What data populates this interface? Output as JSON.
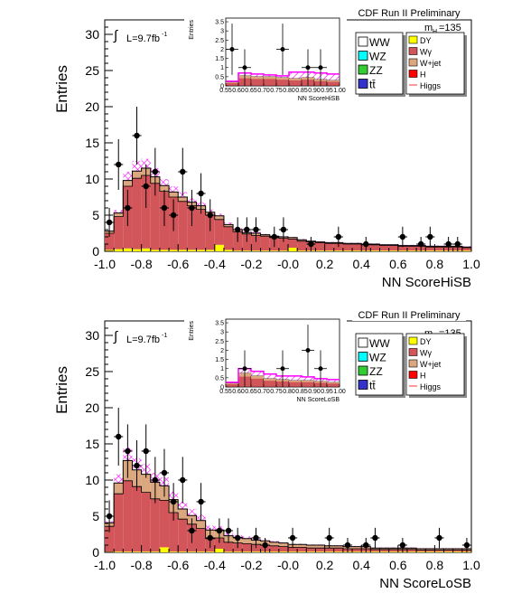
{
  "chart_data": [
    {
      "type": "bar",
      "id": "hisb",
      "xlabel": "NN ScoreHiSB",
      "ylabel": "Entries",
      "xlim": [
        -1.0,
        1.0
      ],
      "ylim": [
        0,
        32
      ],
      "xticks": [
        "-1.0",
        "-0.8",
        "-0.6",
        "-0.4",
        "-0.2",
        "-0.0",
        "0.2",
        "0.4",
        "0.6",
        "0.8",
        "1.0"
      ],
      "yticks": [
        "0",
        "5",
        "10",
        "15",
        "20",
        "25",
        "30"
      ],
      "header": "CDF Run II Preliminary",
      "mass_label": "m",
      "mass_sub": "H",
      "mass_value": "=135",
      "lumi_label": "L=9.7fb",
      "lumi_sup": "-1",
      "integral_symbol": "∫",
      "bin_edges": [
        -1.0,
        -0.95,
        -0.9,
        -0.85,
        -0.8,
        -0.75,
        -0.7,
        -0.65,
        -0.6,
        -0.55,
        -0.5,
        -0.45,
        -0.4,
        -0.35,
        -0.3,
        -0.25,
        -0.2,
        -0.15,
        -0.1,
        -0.05,
        0.0,
        0.05,
        0.1,
        0.15,
        0.2,
        0.25,
        0.3,
        0.35,
        0.4,
        0.45,
        0.5,
        0.55,
        0.6,
        0.65,
        0.7,
        0.75,
        0.8,
        0.85,
        0.9,
        0.95,
        1.0
      ],
      "stack": [
        {
          "name": "DY",
          "color": "#ffff00",
          "values": [
            0.2,
            0.3,
            0.4,
            0.3,
            0.4,
            0.2,
            0.2,
            0.2,
            0.2,
            0.2,
            0.2,
            0.2,
            0.9,
            0.2,
            0.1,
            0.1,
            0.1,
            0.1,
            0.1,
            0.1,
            0.5,
            0.1,
            0.1,
            0.1,
            0.1,
            0.1,
            0.1,
            0.1,
            0.1,
            0.1,
            0.1,
            0.1,
            0.1,
            0.1,
            0.1,
            0.1,
            0.1,
            0.1,
            0.1,
            0.1
          ]
        },
        {
          "name": "Wγ",
          "color": "#d2555a",
          "values": [
            2.3,
            4.5,
            8.6,
            9.8,
            10.1,
            9.2,
            8.1,
            7.3,
            6.7,
            6.1,
            5.6,
            4.8,
            3.5,
            3.2,
            2.6,
            2.3,
            2.1,
            2.0,
            1.8,
            1.7,
            1.2,
            1.3,
            1.2,
            1.1,
            1.0,
            1.0,
            0.9,
            0.9,
            0.8,
            0.8,
            0.7,
            0.7,
            0.6,
            0.6,
            0.6,
            0.5,
            0.5,
            0.5,
            0.5,
            0.4
          ]
        },
        {
          "name": "W+jet",
          "color": "#dba77f",
          "values": [
            0.3,
            0.5,
            0.8,
            1.0,
            1.0,
            0.9,
            0.8,
            0.7,
            0.6,
            0.5,
            0.5,
            0.4,
            0.5,
            0.3,
            0.3,
            0.2,
            0.3,
            0.2,
            0.2,
            0.2,
            0.2,
            0.2,
            0.1,
            0.1,
            0.1,
            0.1,
            0.1,
            0.1,
            0.1,
            0.1,
            0.1,
            0.1,
            0.1,
            0.1,
            0.1,
            0.1,
            0.1,
            0.1,
            0.1,
            0.1
          ]
        }
      ],
      "higgs_extra": [
        0.1,
        0.4,
        1.2,
        1.4,
        1.3,
        1.2,
        0.9,
        0.8,
        0.7,
        0.6,
        0.5,
        0.4,
        0.3,
        0.3,
        0.2,
        0.2,
        0.2,
        0.1,
        0.1,
        0.1,
        0.1,
        0.1,
        0.1,
        0.1,
        0.1,
        0.1,
        0.1,
        0.1,
        0.1,
        0.1,
        0.1,
        0.1,
        0.1,
        0.1,
        0.1,
        0.1,
        0.1,
        0.1,
        0.1,
        0.1
      ],
      "data_points": [
        {
          "x": -0.975,
          "y": 4,
          "err": 2
        },
        {
          "x": -0.925,
          "y": 12,
          "err": 3.5
        },
        {
          "x": -0.875,
          "y": 6,
          "err": 2.5
        },
        {
          "x": -0.825,
          "y": 16,
          "err": 4
        },
        {
          "x": -0.775,
          "y": 9,
          "err": 3
        },
        {
          "x": -0.725,
          "y": 11,
          "err": 3.3
        },
        {
          "x": -0.675,
          "y": 6,
          "err": 2.5
        },
        {
          "x": -0.625,
          "y": 5,
          "err": 2.2
        },
        {
          "x": -0.575,
          "y": 11,
          "err": 3.3
        },
        {
          "x": -0.525,
          "y": 6,
          "err": 2.5
        },
        {
          "x": -0.475,
          "y": 8,
          "err": 2.8
        },
        {
          "x": -0.425,
          "y": 5,
          "err": 2.2
        },
        {
          "x": -0.275,
          "y": 3,
          "err": 1.7
        },
        {
          "x": -0.225,
          "y": 3,
          "err": 1.7
        },
        {
          "x": -0.175,
          "y": 3,
          "err": 1.7
        },
        {
          "x": -0.075,
          "y": 2,
          "err": 1.4
        },
        {
          "x": -0.025,
          "y": 3,
          "err": 1.7
        },
        {
          "x": 0.125,
          "y": 1,
          "err": 1
        },
        {
          "x": 0.275,
          "y": 2,
          "err": 1.4
        },
        {
          "x": 0.425,
          "y": 1,
          "err": 1
        },
        {
          "x": 0.625,
          "y": 2,
          "err": 1.4
        },
        {
          "x": 0.725,
          "y": 1,
          "err": 1
        },
        {
          "x": 0.775,
          "y": 2,
          "err": 1.4
        },
        {
          "x": 0.875,
          "y": 1,
          "err": 1
        },
        {
          "x": 0.925,
          "y": 1,
          "err": 1
        }
      ],
      "inset": {
        "xlabel": "NN ScoreHiSB",
        "ylabel": "Entries",
        "xlim": [
          0.55,
          1.0
        ],
        "ylim": [
          0,
          3.7
        ],
        "xticks": [
          "0.55",
          "0.60",
          "0.65",
          "0.70",
          "0.75",
          "0.80",
          "0.85",
          "0.90",
          "0.95",
          "1.00"
        ],
        "yticks": [
          "0",
          "0.5",
          "1",
          "1.5",
          "2",
          "2.5",
          "3",
          "3.5"
        ],
        "bin_edges": [
          0.55,
          0.6,
          0.65,
          0.7,
          0.75,
          0.8,
          0.85,
          0.9,
          0.95,
          1.0
        ],
        "mc": [
          0.2,
          0.55,
          0.5,
          0.5,
          0.45,
          0.4,
          0.45,
          0.35,
          0.3
        ],
        "higgs": [
          0.25,
          0.7,
          0.65,
          0.6,
          0.55,
          0.75,
          0.75,
          0.7,
          0.65
        ],
        "data_points": [
          {
            "x": 0.575,
            "y": 2,
            "err": 1.4
          },
          {
            "x": 0.625,
            "y": 1,
            "err": 1
          },
          {
            "x": 0.775,
            "y": 2,
            "err": 1.4
          },
          {
            "x": 0.875,
            "y": 1,
            "err": 1
          },
          {
            "x": 0.925,
            "y": 1,
            "err": 1
          }
        ]
      }
    },
    {
      "type": "bar",
      "id": "losb",
      "xlabel": "NN ScoreLoSB",
      "ylabel": "Entries",
      "xlim": [
        -1.0,
        1.0
      ],
      "ylim": [
        0,
        32
      ],
      "xticks": [
        "-1.0",
        "-0.8",
        "-0.6",
        "-0.4",
        "-0.2",
        "-0.0",
        "0.2",
        "0.4",
        "0.6",
        "0.8",
        "1.0"
      ],
      "yticks": [
        "0",
        "5",
        "10",
        "15",
        "20",
        "25",
        "30"
      ],
      "header": "CDF Run II Preliminary",
      "mass_label": "m",
      "mass_sub": "H",
      "mass_value": "=135",
      "lumi_label": "L=9.7fb",
      "lumi_sup": "-1",
      "integral_symbol": "∫",
      "bin_edges": [
        -1.0,
        -0.95,
        -0.9,
        -0.85,
        -0.8,
        -0.75,
        -0.7,
        -0.65,
        -0.6,
        -0.55,
        -0.5,
        -0.45,
        -0.4,
        -0.35,
        -0.3,
        -0.25,
        -0.2,
        -0.15,
        -0.1,
        -0.05,
        0.0,
        0.05,
        0.1,
        0.15,
        0.2,
        0.25,
        0.3,
        0.35,
        0.4,
        0.45,
        0.5,
        0.55,
        0.6,
        0.65,
        0.7,
        0.75,
        0.8,
        0.85,
        0.9,
        0.95,
        1.0
      ],
      "stack": [
        {
          "name": "DY",
          "color": "#ffff00",
          "values": [
            0.1,
            0.1,
            0.1,
            0.1,
            0.1,
            0.1,
            0.7,
            0.1,
            0.1,
            0.1,
            0.1,
            0.1,
            0.5,
            0.1,
            0.1,
            0.1,
            0.1,
            0.1,
            0.1,
            0.1,
            0.1,
            0.1,
            0.1,
            0.1,
            0.1,
            0.1,
            0.1,
            0.1,
            0.1,
            0.1,
            0.1,
            0.1,
            0.1,
            0.1,
            0.1,
            0.1,
            0.1,
            0.1,
            0.1,
            0.1
          ]
        },
        {
          "name": "Wγ",
          "color": "#d2555a",
          "values": [
            3.5,
            8.0,
            9.8,
            9.0,
            8.2,
            7.3,
            6.5,
            5.4,
            4.5,
            3.8,
            3.2,
            1.8,
            1.5,
            1.3,
            1.2,
            1.1,
            1.0,
            0.9,
            0.8,
            0.7,
            0.6,
            0.6,
            0.5,
            0.5,
            0.5,
            0.5,
            0.4,
            0.4,
            0.4,
            0.3,
            0.3,
            0.3,
            0.3,
            0.3,
            0.2,
            0.2,
            0.2,
            0.2,
            0.2,
            0.2
          ]
        },
        {
          "name": "W+jet",
          "color": "#dba77f",
          "values": [
            0.5,
            1.5,
            2.8,
            2.3,
            2.5,
            2.3,
            2.0,
            1.8,
            1.4,
            1.2,
            1.1,
            1.2,
            1.1,
            0.9,
            0.8,
            0.7,
            0.6,
            0.6,
            0.5,
            0.5,
            0.4,
            0.4,
            0.4,
            0.4,
            0.3,
            0.3,
            0.3,
            0.3,
            0.3,
            0.2,
            0.2,
            0.2,
            0.2,
            0.2,
            0.2,
            0.2,
            0.2,
            0.2,
            0.2,
            0.2
          ]
        }
      ],
      "higgs_extra": [
        0.2,
        1.2,
        1.8,
        1.6,
        1.4,
        1.3,
        1.2,
        1.1,
        1.0,
        0.9,
        0.8,
        0.6,
        0.5,
        0.4,
        0.3,
        0.3,
        0.2,
        0.2,
        0.2,
        0.1,
        0.1,
        0.1,
        0.1,
        0.1,
        0.1,
        0.1,
        0.1,
        0.1,
        0.1,
        0.1,
        0.1,
        0.1,
        0.1,
        0.1,
        0.1,
        0.1,
        0.1,
        0.1,
        0.1,
        0.1
      ],
      "data_points": [
        {
          "x": -0.975,
          "y": 5,
          "err": 2.2
        },
        {
          "x": -0.925,
          "y": 16,
          "err": 4
        },
        {
          "x": -0.875,
          "y": 14,
          "err": 3.7
        },
        {
          "x": -0.825,
          "y": 12,
          "err": 3.5
        },
        {
          "x": -0.775,
          "y": 14,
          "err": 3.7
        },
        {
          "x": -0.725,
          "y": 10,
          "err": 3.2
        },
        {
          "x": -0.675,
          "y": 11,
          "err": 3.3
        },
        {
          "x": -0.625,
          "y": 7,
          "err": 2.6
        },
        {
          "x": -0.575,
          "y": 10,
          "err": 3.2
        },
        {
          "x": -0.525,
          "y": 3,
          "err": 1.7
        },
        {
          "x": -0.475,
          "y": 7,
          "err": 2.6
        },
        {
          "x": -0.425,
          "y": 2,
          "err": 1.4
        },
        {
          "x": -0.375,
          "y": 3,
          "err": 1.7
        },
        {
          "x": -0.325,
          "y": 3,
          "err": 1.7
        },
        {
          "x": -0.275,
          "y": 2,
          "err": 1.4
        },
        {
          "x": -0.175,
          "y": 2,
          "err": 1.4
        },
        {
          "x": -0.125,
          "y": 1,
          "err": 1
        },
        {
          "x": 0.025,
          "y": 2,
          "err": 1.4
        },
        {
          "x": 0.225,
          "y": 2,
          "err": 1.4
        },
        {
          "x": 0.325,
          "y": 1,
          "err": 1
        },
        {
          "x": 0.425,
          "y": 1,
          "err": 1
        },
        {
          "x": 0.475,
          "y": 2,
          "err": 1.4
        },
        {
          "x": 0.625,
          "y": 1,
          "err": 1
        },
        {
          "x": 0.825,
          "y": 2,
          "err": 1.4
        },
        {
          "x": 0.975,
          "y": 1,
          "err": 1
        }
      ],
      "inset": {
        "xlabel": "NN ScoreLoSB",
        "ylabel": "Entries",
        "xlim": [
          0.55,
          1.0
        ],
        "ylim": [
          0,
          3.7
        ],
        "xticks": [
          "0.55",
          "0.60",
          "0.65",
          "0.70",
          "0.75",
          "0.80",
          "0.85",
          "0.90",
          "0.95",
          "1.00"
        ],
        "yticks": [
          "0",
          "0.5",
          "1",
          "1.5",
          "2",
          "2.5",
          "3",
          "3.5"
        ],
        "bin_edges": [
          0.55,
          0.6,
          0.65,
          0.7,
          0.75,
          0.8,
          0.85,
          0.9,
          0.95,
          1.0
        ],
        "mc": [
          0.2,
          0.75,
          0.6,
          0.45,
          0.4,
          0.35,
          0.35,
          0.3,
          0.25
        ],
        "higgs": [
          0.25,
          1.0,
          0.85,
          0.7,
          0.6,
          0.6,
          0.55,
          0.45,
          0.4
        ],
        "data_points": [
          {
            "x": 0.625,
            "y": 1,
            "err": 1
          },
          {
            "x": 0.775,
            "y": 1,
            "err": 1
          },
          {
            "x": 0.875,
            "y": 2,
            "err": 1.4
          },
          {
            "x": 0.925,
            "y": 1,
            "err": 1
          }
        ]
      }
    }
  ],
  "legend": {
    "left": [
      {
        "label": "WW",
        "color": "#ffffff"
      },
      {
        "label": "WZ",
        "color": "#00ffff"
      },
      {
        "label": "ZZ",
        "color": "#33cc33"
      },
      {
        "label": "tt̄",
        "color": "#3333cc"
      }
    ],
    "right": [
      {
        "label": "DY",
        "color": "#ffff00"
      },
      {
        "label": "Wγ",
        "color": "#d2555a"
      },
      {
        "label": "W+jet",
        "color": "#dba77f"
      },
      {
        "label": "H",
        "color": "#ff0000"
      },
      {
        "label": "Higgs",
        "color": "#ff3333"
      }
    ]
  },
  "colors": {
    "higgs_hatch": "#ff00ff",
    "data": "#000000"
  }
}
